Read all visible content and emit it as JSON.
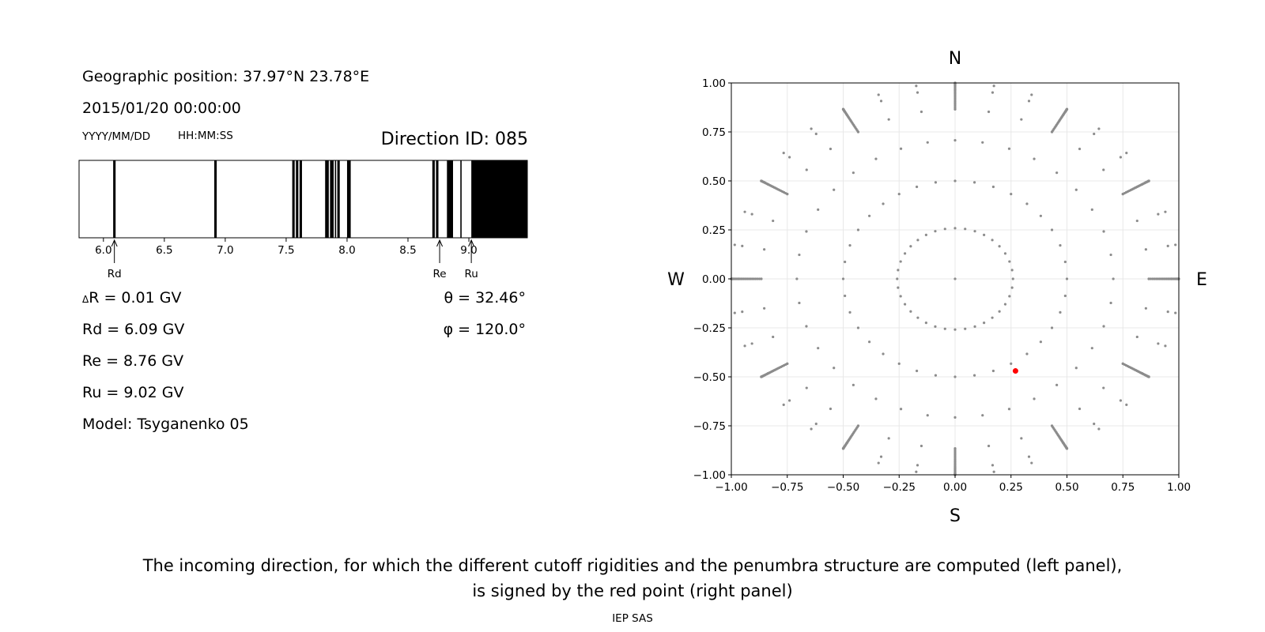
{
  "left_panel": {
    "geo_position": "Geographic position: 37.97°N 23.78°E",
    "datetime": "2015/01/20 00:00:00",
    "date_format": "YYYY/MM/DD",
    "time_format": "HH:MM:SS",
    "direction_id": "Direction ID: 085",
    "delta_r": "R = 0.01 GV",
    "delta_symbol": "Δ",
    "rd": "Rd = 6.09 GV",
    "re": "Re = 8.76 GV",
    "ru": "Ru = 9.02 GV",
    "model": "Model: Tsyganenko 05",
    "theta": "θ = 32.46°",
    "phi": "φ = 120.0°"
  },
  "right_panel": {
    "north": "N",
    "south": "S",
    "west": "W",
    "east": "E"
  },
  "caption": {
    "line1": "The incoming direction, for which the different cutoff rigidities and the penumbra structure are computed (left panel),",
    "line2": "is signed by the red point (right panel)"
  },
  "footer": "IEP SAS",
  "chart_data": [
    {
      "type": "penumbra_bar",
      "xlim": [
        5.8,
        9.48
      ],
      "x_ticks": [
        "6.0",
        "6.5",
        "7.0",
        "7.5",
        "8.0",
        "8.5",
        "9.0"
      ],
      "x_tick_values": [
        6.0,
        6.5,
        7.0,
        7.5,
        8.0,
        8.5,
        9.0
      ],
      "forbidden_bands": [
        [
          6.08,
          6.1
        ],
        [
          6.91,
          6.93
        ],
        [
          7.55,
          7.57
        ],
        [
          7.58,
          7.6
        ],
        [
          7.61,
          7.63
        ],
        [
          7.82,
          7.85
        ],
        [
          7.86,
          7.89
        ],
        [
          7.9,
          7.91
        ],
        [
          7.92,
          7.94
        ],
        [
          8.0,
          8.03
        ],
        [
          8.7,
          8.72
        ],
        [
          8.73,
          8.75
        ],
        [
          8.82,
          8.87
        ],
        [
          8.93,
          8.94
        ],
        [
          9.02,
          9.48
        ]
      ],
      "markers": [
        {
          "label": "Rd",
          "value": 6.09
        },
        {
          "label": "Re",
          "value": 8.76
        },
        {
          "label": "Ru",
          "value": 9.02
        }
      ],
      "colors": {
        "band": "#000000",
        "background": "#ffffff"
      }
    },
    {
      "type": "scatter",
      "xlim": [
        -1.0,
        1.0
      ],
      "ylim": [
        -1.0,
        1.0
      ],
      "x_ticks": [
        "−1.00",
        "−0.75",
        "−0.50",
        "−0.25",
        "0.00",
        "0.25",
        "0.50",
        "0.75",
        "1.00"
      ],
      "y_ticks": [
        "−1.00",
        "−0.75",
        "−0.50",
        "−0.25",
        "0.00",
        "0.25",
        "0.50",
        "0.75",
        "1.00"
      ],
      "tick_values": [
        -1.0,
        -0.75,
        -0.5,
        -0.25,
        0.0,
        0.25,
        0.5,
        0.75,
        1.0
      ],
      "grid": true,
      "directions_grid": {
        "theta_step_deg": 15,
        "theta_max_deg": 90,
        "phi_step_deg": 10,
        "theta_fine_step_deg": 1,
        "theta_fine_from_deg": 60,
        "projection": "sin(theta)"
      },
      "highlight_point": {
        "x": 0.27,
        "y": -0.47,
        "theta_deg": 32.46,
        "phi_deg": 120.0
      },
      "colors": {
        "points": "#8c8c8c",
        "highlight": "#ff0000",
        "grid": "#e8e8e8"
      }
    }
  ]
}
